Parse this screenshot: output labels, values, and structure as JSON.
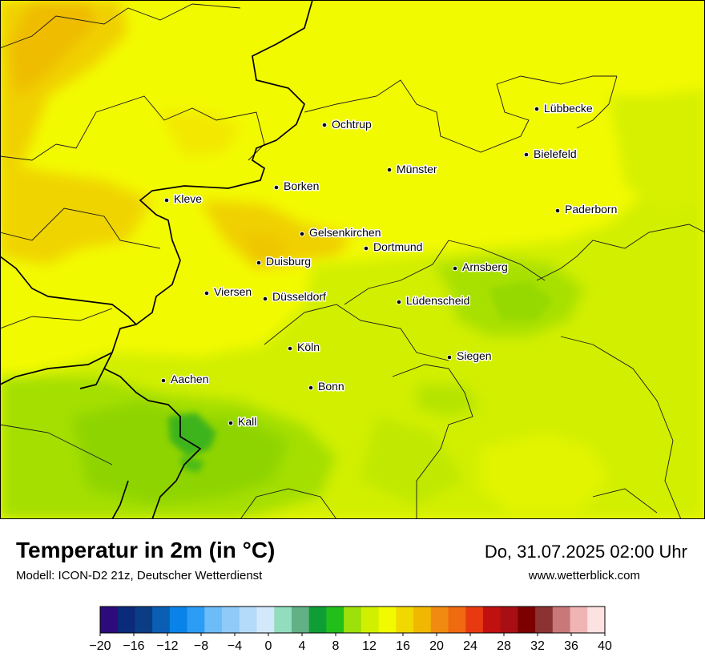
{
  "map": {
    "cities": [
      {
        "name": "Lübbecke"
      },
      {
        "name": "Ochtrup"
      },
      {
        "name": "Bielefeld"
      },
      {
        "name": "Münster"
      },
      {
        "name": "Borken"
      },
      {
        "name": "Kleve"
      },
      {
        "name": "Paderborn"
      },
      {
        "name": "Gelsenkirchen"
      },
      {
        "name": "Dortmund"
      },
      {
        "name": "Duisburg"
      },
      {
        "name": "Arnsberg"
      },
      {
        "name": "Viersen"
      },
      {
        "name": "Düsseldorf"
      },
      {
        "name": "Lüdenscheid"
      },
      {
        "name": "Köln"
      },
      {
        "name": "Siegen"
      },
      {
        "name": "Aachen"
      },
      {
        "name": "Bonn"
      },
      {
        "name": "Kall"
      }
    ]
  },
  "footer": {
    "title": "Temperatur in 2m (in °C)",
    "model": "Modell: ICON-D2 21z, Deutscher Wetterdienst",
    "datetime": "Do, 31.07.2025 02:00 Uhr",
    "website": "www.wetterblick.com"
  },
  "legend": {
    "min": -20,
    "max": 40,
    "ticks": [
      "−20",
      "−16",
      "−12",
      "−8",
      "−4",
      "0",
      "4",
      "8",
      "12",
      "16",
      "20",
      "24",
      "28",
      "32",
      "36",
      "40"
    ],
    "colors": [
      "#2e0b7a",
      "#0b2a7a",
      "#0a3d84",
      "#0a5fb5",
      "#0a83e8",
      "#2c9df5",
      "#6cbcf7",
      "#8fcaf8",
      "#b4dcfa",
      "#d3e9fb",
      "#92ddbd",
      "#62b086",
      "#0f9e36",
      "#22bf1b",
      "#9ee00a",
      "#d1f000",
      "#f2fa00",
      "#f0d800",
      "#f0b800",
      "#f08a10",
      "#f06a10",
      "#e83a10",
      "#c01010",
      "#a80f14",
      "#7c0000",
      "#8c3232",
      "#c87878",
      "#f0b4b4",
      "#fde2e2"
    ]
  }
}
